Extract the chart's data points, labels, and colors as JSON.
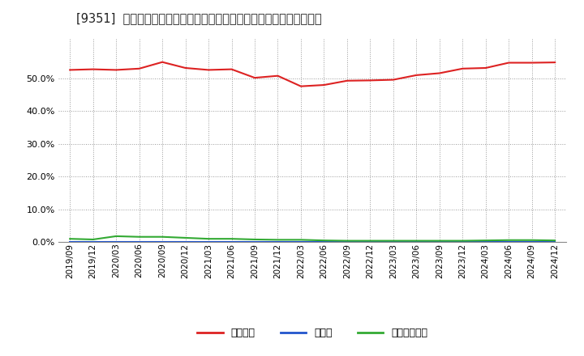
{
  "title": "[9351]  自己資本、のれん、繰延税金資産の総資産に対する比率の推移",
  "x_labels": [
    "2019/09",
    "2019/12",
    "2020/03",
    "2020/06",
    "2020/09",
    "2020/12",
    "2021/03",
    "2021/06",
    "2021/09",
    "2021/12",
    "2022/03",
    "2022/06",
    "2022/09",
    "2022/12",
    "2023/03",
    "2023/06",
    "2023/09",
    "2023/12",
    "2024/03",
    "2024/06",
    "2024/09",
    "2024/12"
  ],
  "equity": [
    0.526,
    0.528,
    0.526,
    0.53,
    0.55,
    0.532,
    0.526,
    0.528,
    0.502,
    0.508,
    0.476,
    0.48,
    0.493,
    0.494,
    0.496,
    0.51,
    0.516,
    0.53,
    0.532,
    0.548,
    0.548,
    0.549
  ],
  "goodwill": [
    0.0,
    0.0,
    0.0,
    0.0,
    0.0,
    0.0,
    0.0,
    0.0,
    0.0,
    0.0,
    0.0,
    0.0,
    0.0,
    0.0,
    0.0,
    0.0,
    0.0,
    0.0,
    0.0,
    0.0,
    0.0,
    0.0
  ],
  "deferred_tax": [
    0.01,
    0.008,
    0.018,
    0.016,
    0.016,
    0.013,
    0.01,
    0.01,
    0.008,
    0.007,
    0.007,
    0.005,
    0.004,
    0.004,
    0.004,
    0.004,
    0.004,
    0.004,
    0.005,
    0.006,
    0.006,
    0.005
  ],
  "equity_color": "#dd2222",
  "goodwill_color": "#2255cc",
  "deferred_tax_color": "#33aa33",
  "bg_color": "#ffffff",
  "plot_bg_color": "#ffffff",
  "grid_color": "#999999",
  "ylim": [
    0.0,
    0.62
  ],
  "yticks": [
    0.0,
    0.1,
    0.2,
    0.3,
    0.4,
    0.5
  ],
  "legend_labels": [
    "自己資本",
    "のれん",
    "繰延税金資産"
  ],
  "title_fontsize": 10.5,
  "tick_fontsize": 7.5,
  "ytick_fontsize": 8
}
